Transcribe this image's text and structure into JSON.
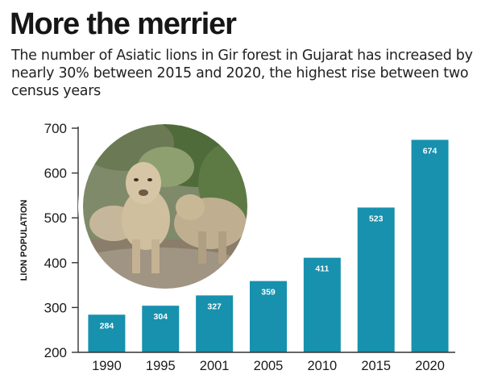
{
  "header": {
    "title": "More the merrier",
    "subtitle": "The number of Asiatic lions in Gir forest in Gujarat has increased by nearly 30% between 2015 and 2020, the highest rise between two census years"
  },
  "photo": {
    "subject": "lions-photo"
  },
  "colors": {
    "bar": "#1791ad",
    "bar_label": "#ffffff",
    "axis": "#333333",
    "text": "#1a1a1a"
  },
  "chart_data": {
    "type": "bar",
    "categories": [
      "1990",
      "1995",
      "2001",
      "2005",
      "2010",
      "2015",
      "2020"
    ],
    "values": [
      284,
      304,
      327,
      359,
      411,
      523,
      674
    ],
    "value_labels": [
      "284",
      "304",
      "327",
      "359",
      "411",
      "523",
      "674"
    ],
    "title": "More the merrier",
    "xlabel": "",
    "ylabel": "LION POPULATION",
    "ylim": [
      200,
      700
    ],
    "yticks": [
      200,
      300,
      400,
      500,
      600,
      700
    ],
    "ytick_labels": [
      "200",
      "300",
      "400",
      "500",
      "600",
      "700"
    ],
    "grid": false,
    "legend": "none"
  }
}
